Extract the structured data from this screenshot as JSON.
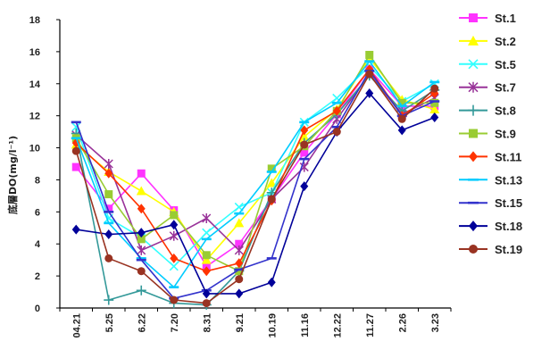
{
  "chart_data": {
    "type": "line",
    "ylabel": "底層DO(mg/l⁻¹)",
    "ylim": [
      0,
      18
    ],
    "yticks": [
      0,
      2,
      4,
      6,
      8,
      10,
      12,
      14,
      16,
      18
    ],
    "categories": [
      "04.21",
      "5.25",
      "6.22",
      "7.20",
      "8.31",
      "9.21",
      "10.19",
      "11.16",
      "12.22",
      "11.27",
      "2.26",
      "3.23"
    ],
    "grid": false,
    "legend": "right",
    "series": [
      {
        "name": "St.1",
        "color": "#ff33ff",
        "marker": "square",
        "values": [
          8.8,
          6.2,
          8.4,
          6.1,
          2.6,
          4.0,
          6.8,
          9.7,
          12.1,
          14.9,
          12.6,
          12.6
        ]
      },
      {
        "name": "St.2",
        "color": "#ffff00",
        "marker": "triangle",
        "values": [
          10.2,
          8.5,
          7.3,
          6.0,
          3.0,
          5.3,
          7.8,
          10.7,
          12.4,
          15.6,
          13.0,
          12.4
        ]
      },
      {
        "name": "St.5",
        "color": "#33ffff",
        "marker": "x",
        "values": [
          11.3,
          5.6,
          4.4,
          2.6,
          4.7,
          6.3,
          7.2,
          11.6,
          13.1,
          15.1,
          12.9,
          14.0
        ]
      },
      {
        "name": "St.7",
        "color": "#993399",
        "marker": "asterisk",
        "values": [
          10.8,
          9.0,
          3.6,
          4.5,
          5.6,
          3.6,
          6.8,
          8.8,
          11.8,
          14.6,
          12.1,
          13.1
        ]
      },
      {
        "name": "St.8",
        "color": "#339999",
        "marker": "plus",
        "values": [
          10.9,
          0.5,
          1.1,
          0.3,
          0.2,
          2.3,
          7.2,
          10.3,
          12.1,
          14.5,
          12.3,
          13.6
        ]
      },
      {
        "name": "St.9",
        "color": "#99cc33",
        "marker": "square",
        "values": [
          10.6,
          7.1,
          4.3,
          5.8,
          3.3,
          2.3,
          8.7,
          10.1,
          12.3,
          15.8,
          12.8,
          12.8
        ]
      },
      {
        "name": "St.11",
        "color": "#ff3300",
        "marker": "diamond",
        "values": [
          10.3,
          8.4,
          6.2,
          3.1,
          2.3,
          2.8,
          6.7,
          11.1,
          12.3,
          14.9,
          12.0,
          13.4
        ]
      },
      {
        "name": "St.13",
        "color": "#00ccff",
        "marker": "dash",
        "values": [
          10.6,
          5.3,
          3.1,
          1.3,
          4.3,
          5.9,
          8.5,
          11.6,
          12.8,
          15.4,
          12.6,
          14.1
        ]
      },
      {
        "name": "St.15",
        "color": "#3333cc",
        "marker": "dash",
        "values": [
          11.6,
          6.0,
          3.0,
          0.6,
          1.1,
          2.4,
          3.1,
          9.3,
          11.3,
          14.8,
          12.0,
          12.9
        ]
      },
      {
        "name": "St.18",
        "color": "#000099",
        "marker": "diamond",
        "values": [
          4.9,
          4.6,
          4.7,
          5.2,
          0.9,
          0.9,
          1.6,
          7.6,
          11.0,
          13.4,
          11.1,
          11.9
        ]
      },
      {
        "name": "St.19",
        "color": "#993322",
        "marker": "circle",
        "values": [
          9.8,
          3.1,
          2.3,
          0.5,
          0.3,
          1.8,
          6.8,
          10.2,
          11.0,
          14.6,
          11.8,
          13.7
        ]
      }
    ]
  }
}
